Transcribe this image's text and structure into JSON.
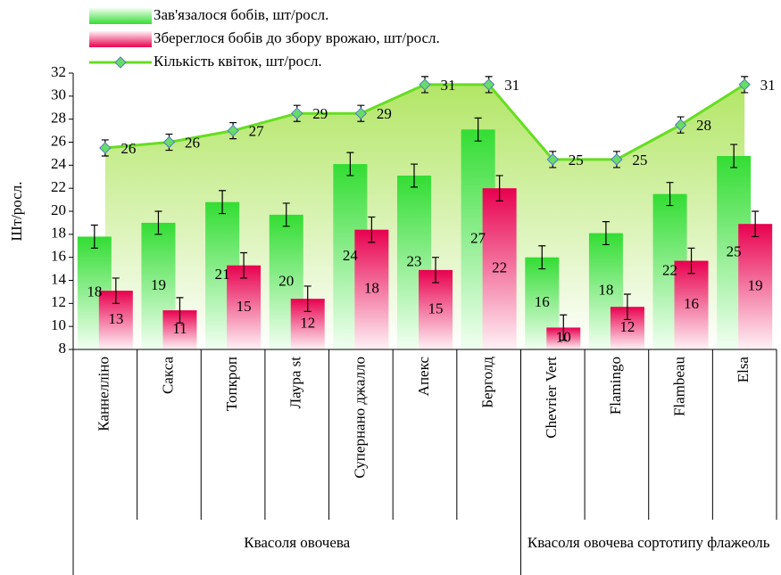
{
  "chart_data": {
    "type": "bar-line",
    "y_axis_label": "Шт/росл.",
    "categories": [
      "Каннелліно",
      "Сакса",
      "Топкроп",
      "Лаура st",
      "Супернано джалло",
      "Апекс",
      "Берголд",
      "Chevrier Vert",
      "Flamingo",
      "Flambeau",
      "Elsa"
    ],
    "groups": [
      {
        "label": "Квасоля овочева",
        "span": 7
      },
      {
        "label": "Квасоля овочева сортотипу флажеоль",
        "span": 4
      }
    ],
    "series": [
      {
        "name": "Зав'язалося бобів, шт/росл.",
        "type": "bar",
        "color": "#33dd33",
        "values": [
          17.8,
          19,
          20.8,
          19.7,
          24.1,
          23.1,
          27.1,
          16,
          18.1,
          21.5,
          24.8
        ],
        "value_labels": [
          "18",
          "19",
          "21",
          "20",
          "24",
          "23",
          "27",
          "16",
          "18",
          "22",
          "25"
        ],
        "errors": [
          1,
          1,
          1,
          1,
          1,
          1,
          1,
          1,
          1,
          1,
          1
        ]
      },
      {
        "name": "Збереглося бобів до збору врожаю, шт/росл.",
        "type": "bar",
        "color": "#e8004f",
        "values": [
          13.1,
          11.4,
          15.3,
          12.4,
          18.4,
          14.9,
          22,
          9.9,
          11.7,
          15.7,
          18.9
        ],
        "value_labels": [
          "13",
          "11",
          "15",
          "12",
          "18",
          "15",
          "22",
          "10",
          "12",
          "16",
          "19"
        ],
        "errors": [
          1.1,
          1.1,
          1.1,
          1.1,
          1.1,
          1.1,
          1.1,
          1.1,
          1.1,
          1.1,
          1.1
        ]
      },
      {
        "name": "Кількість квіток, шт/росл.",
        "type": "line",
        "color": "#66dd22",
        "values": [
          25.5,
          26,
          27,
          28.5,
          28.5,
          31,
          31,
          24.5,
          24.5,
          27.5,
          31
        ],
        "value_labels": [
          "26",
          "26",
          "27",
          "29",
          "29",
          "31",
          "31",
          "25",
          "25",
          "28",
          "31"
        ],
        "errors": [
          0.7,
          0.7,
          0.7,
          0.7,
          0.7,
          0.7,
          0.7,
          0.7,
          0.7,
          0.7,
          0.7
        ]
      }
    ],
    "ylim": [
      8,
      32
    ],
    "yticks": [
      8,
      10,
      12,
      14,
      16,
      18,
      20,
      22,
      24,
      26,
      28,
      30,
      32
    ],
    "grid": false
  }
}
